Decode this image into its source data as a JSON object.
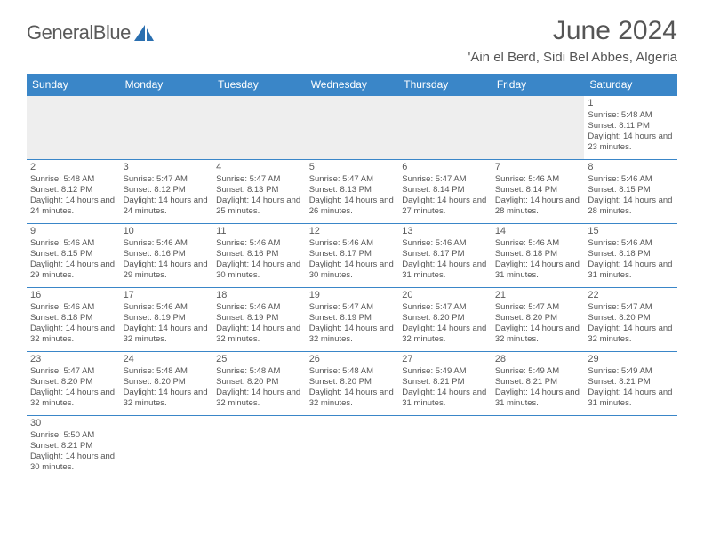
{
  "brand": {
    "name_part1": "General",
    "name_part2": "Blue"
  },
  "title": "June 2024",
  "location": "'Ain el Berd, Sidi Bel Abbes, Algeria",
  "colors": {
    "header_bg": "#3a86c8",
    "header_text": "#ffffff",
    "border": "#3a86c8",
    "text": "#555555",
    "empty_bg": "#eeeeee",
    "logo_sail": "#2a6fb0"
  },
  "weekdays": [
    "Sunday",
    "Monday",
    "Tuesday",
    "Wednesday",
    "Thursday",
    "Friday",
    "Saturday"
  ],
  "weeks": [
    [
      null,
      null,
      null,
      null,
      null,
      null,
      {
        "n": "1",
        "sr": "5:48 AM",
        "ss": "8:11 PM",
        "dl": "14 hours and 23 minutes."
      }
    ],
    [
      {
        "n": "2",
        "sr": "5:48 AM",
        "ss": "8:12 PM",
        "dl": "14 hours and 24 minutes."
      },
      {
        "n": "3",
        "sr": "5:47 AM",
        "ss": "8:12 PM",
        "dl": "14 hours and 24 minutes."
      },
      {
        "n": "4",
        "sr": "5:47 AM",
        "ss": "8:13 PM",
        "dl": "14 hours and 25 minutes."
      },
      {
        "n": "5",
        "sr": "5:47 AM",
        "ss": "8:13 PM",
        "dl": "14 hours and 26 minutes."
      },
      {
        "n": "6",
        "sr": "5:47 AM",
        "ss": "8:14 PM",
        "dl": "14 hours and 27 minutes."
      },
      {
        "n": "7",
        "sr": "5:46 AM",
        "ss": "8:14 PM",
        "dl": "14 hours and 28 minutes."
      },
      {
        "n": "8",
        "sr": "5:46 AM",
        "ss": "8:15 PM",
        "dl": "14 hours and 28 minutes."
      }
    ],
    [
      {
        "n": "9",
        "sr": "5:46 AM",
        "ss": "8:15 PM",
        "dl": "14 hours and 29 minutes."
      },
      {
        "n": "10",
        "sr": "5:46 AM",
        "ss": "8:16 PM",
        "dl": "14 hours and 29 minutes."
      },
      {
        "n": "11",
        "sr": "5:46 AM",
        "ss": "8:16 PM",
        "dl": "14 hours and 30 minutes."
      },
      {
        "n": "12",
        "sr": "5:46 AM",
        "ss": "8:17 PM",
        "dl": "14 hours and 30 minutes."
      },
      {
        "n": "13",
        "sr": "5:46 AM",
        "ss": "8:17 PM",
        "dl": "14 hours and 31 minutes."
      },
      {
        "n": "14",
        "sr": "5:46 AM",
        "ss": "8:18 PM",
        "dl": "14 hours and 31 minutes."
      },
      {
        "n": "15",
        "sr": "5:46 AM",
        "ss": "8:18 PM",
        "dl": "14 hours and 31 minutes."
      }
    ],
    [
      {
        "n": "16",
        "sr": "5:46 AM",
        "ss": "8:18 PM",
        "dl": "14 hours and 32 minutes."
      },
      {
        "n": "17",
        "sr": "5:46 AM",
        "ss": "8:19 PM",
        "dl": "14 hours and 32 minutes."
      },
      {
        "n": "18",
        "sr": "5:46 AM",
        "ss": "8:19 PM",
        "dl": "14 hours and 32 minutes."
      },
      {
        "n": "19",
        "sr": "5:47 AM",
        "ss": "8:19 PM",
        "dl": "14 hours and 32 minutes."
      },
      {
        "n": "20",
        "sr": "5:47 AM",
        "ss": "8:20 PM",
        "dl": "14 hours and 32 minutes."
      },
      {
        "n": "21",
        "sr": "5:47 AM",
        "ss": "8:20 PM",
        "dl": "14 hours and 32 minutes."
      },
      {
        "n": "22",
        "sr": "5:47 AM",
        "ss": "8:20 PM",
        "dl": "14 hours and 32 minutes."
      }
    ],
    [
      {
        "n": "23",
        "sr": "5:47 AM",
        "ss": "8:20 PM",
        "dl": "14 hours and 32 minutes."
      },
      {
        "n": "24",
        "sr": "5:48 AM",
        "ss": "8:20 PM",
        "dl": "14 hours and 32 minutes."
      },
      {
        "n": "25",
        "sr": "5:48 AM",
        "ss": "8:20 PM",
        "dl": "14 hours and 32 minutes."
      },
      {
        "n": "26",
        "sr": "5:48 AM",
        "ss": "8:20 PM",
        "dl": "14 hours and 32 minutes."
      },
      {
        "n": "27",
        "sr": "5:49 AM",
        "ss": "8:21 PM",
        "dl": "14 hours and 31 minutes."
      },
      {
        "n": "28",
        "sr": "5:49 AM",
        "ss": "8:21 PM",
        "dl": "14 hours and 31 minutes."
      },
      {
        "n": "29",
        "sr": "5:49 AM",
        "ss": "8:21 PM",
        "dl": "14 hours and 31 minutes."
      }
    ],
    [
      {
        "n": "30",
        "sr": "5:50 AM",
        "ss": "8:21 PM",
        "dl": "14 hours and 30 minutes."
      },
      null,
      null,
      null,
      null,
      null,
      null
    ]
  ],
  "labels": {
    "sunrise": "Sunrise:",
    "sunset": "Sunset:",
    "daylight": "Daylight:"
  }
}
